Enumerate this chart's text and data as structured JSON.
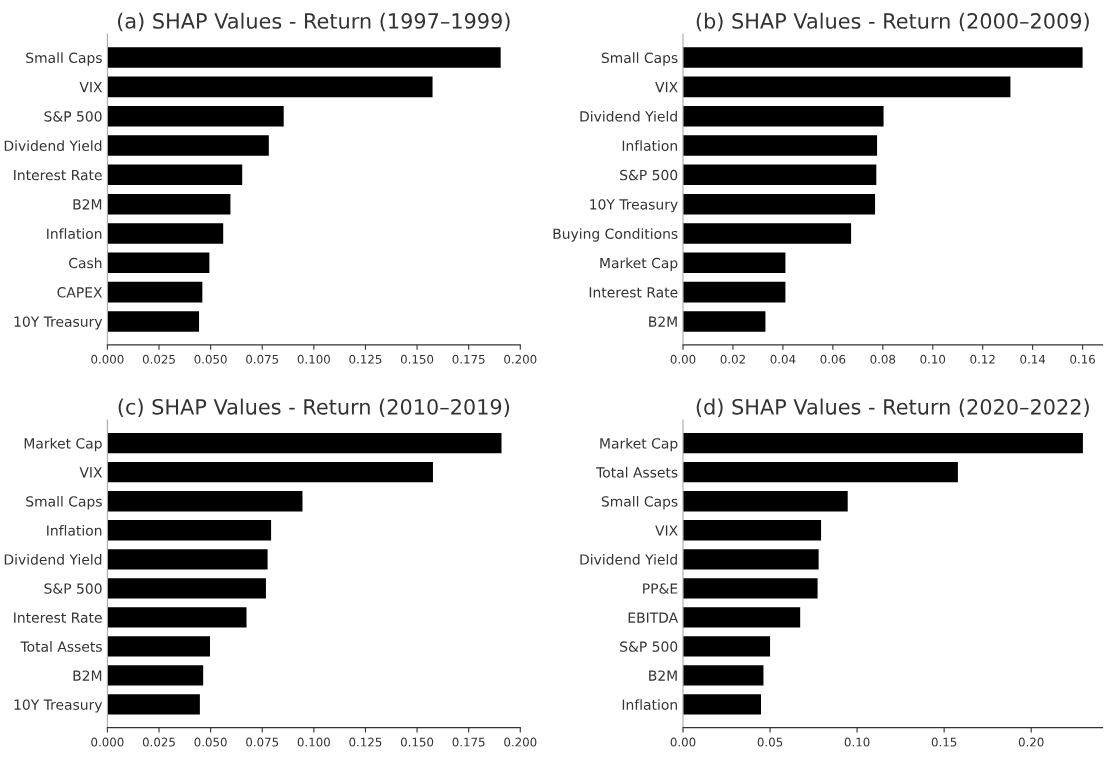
{
  "chart_data": [
    {
      "type": "bar",
      "orientation": "horizontal",
      "title": "(a) SHAP Values - Return (1997–1999)",
      "color": "#000000",
      "categories": [
        "Small Caps",
        "VIX",
        "S&P 500",
        "Dividend Yield",
        "Interest Rate",
        "B2M",
        "Inflation",
        "Cash",
        "CAPEX",
        "10Y Treasury"
      ],
      "values": [
        0.1905,
        0.1575,
        0.0854,
        0.0782,
        0.0653,
        0.0596,
        0.0561,
        0.0494,
        0.046,
        0.0444
      ],
      "xlim": [
        0,
        0.2
      ],
      "xticks": [
        {
          "value": 0,
          "label": "0.000"
        },
        0.025,
        {
          "value": 0.05,
          "label": "0.050"
        },
        0.075,
        {
          "value": 0.1,
          "label": "0.100"
        },
        0.125,
        {
          "value": 0.15,
          "label": "0.150"
        },
        0.175,
        {
          "value": 0.2,
          "label": "0.200"
        }
      ],
      "grid": false,
      "legend": false
    },
    {
      "type": "bar",
      "orientation": "horizontal",
      "title": "(b) SHAP Values - Return (2000–2009)",
      "color": "#000000",
      "categories": [
        "Small Caps",
        "VIX",
        "Dividend Yield",
        "Inflation",
        "S&P 500",
        "10Y Treasury",
        "Buying Conditions",
        "Market Cap",
        "Interest Rate",
        "B2M"
      ],
      "values": [
        0.16,
        0.1311,
        0.0803,
        0.0777,
        0.0774,
        0.0769,
        0.0673,
        0.041,
        0.041,
        0.033
      ],
      "xlim": [
        0,
        0.168
      ],
      "xticks": [
        {
          "value": 0,
          "label": "0.00"
        },
        0.02,
        0.04,
        0.06,
        0.08,
        {
          "value": 0.1,
          "label": "0.10"
        },
        0.12,
        0.14,
        0.16
      ],
      "grid": false,
      "legend": false
    },
    {
      "type": "bar",
      "orientation": "horizontal",
      "title": "(c) SHAP Values - Return (2010–2019)",
      "color": "#000000",
      "categories": [
        "Market Cap",
        "VIX",
        "Small Caps",
        "Inflation",
        "Dividend Yield",
        "S&P 500",
        "Interest Rate",
        "Total Assets",
        "B2M",
        "10Y Treasury"
      ],
      "values": [
        0.1909,
        0.1577,
        0.0945,
        0.0793,
        0.0776,
        0.0768,
        0.0674,
        0.0497,
        0.0464,
        0.0448
      ],
      "xlim": [
        0,
        0.2
      ],
      "xticks": [
        {
          "value": 0,
          "label": "0.000"
        },
        0.025,
        {
          "value": 0.05,
          "label": "0.050"
        },
        0.075,
        {
          "value": 0.1,
          "label": "0.100"
        },
        0.125,
        {
          "value": 0.15,
          "label": "0.150"
        },
        0.175,
        {
          "value": 0.2,
          "label": "0.200"
        }
      ],
      "grid": false,
      "legend": false
    },
    {
      "type": "bar",
      "orientation": "horizontal",
      "title": "(d) SHAP Values - Return (2020–2022)",
      "color": "#000000",
      "categories": [
        "Market Cap",
        "Total Assets",
        "Small Caps",
        "VIX",
        "Dividend Yield",
        "PP&E",
        "EBITDA",
        "S&P 500",
        "B2M",
        "Inflation"
      ],
      "values": [
        0.2297,
        0.1579,
        0.0946,
        0.0793,
        0.0779,
        0.0773,
        0.0673,
        0.05,
        0.0462,
        0.0448
      ],
      "xlim": [
        0,
        0.241
      ],
      "xticks": [
        {
          "value": 0,
          "label": "0.00"
        },
        0.05,
        {
          "value": 0.1,
          "label": "0.10"
        },
        0.15,
        {
          "value": 0.2,
          "label": "0.20"
        }
      ],
      "grid": false,
      "legend": false
    }
  ]
}
